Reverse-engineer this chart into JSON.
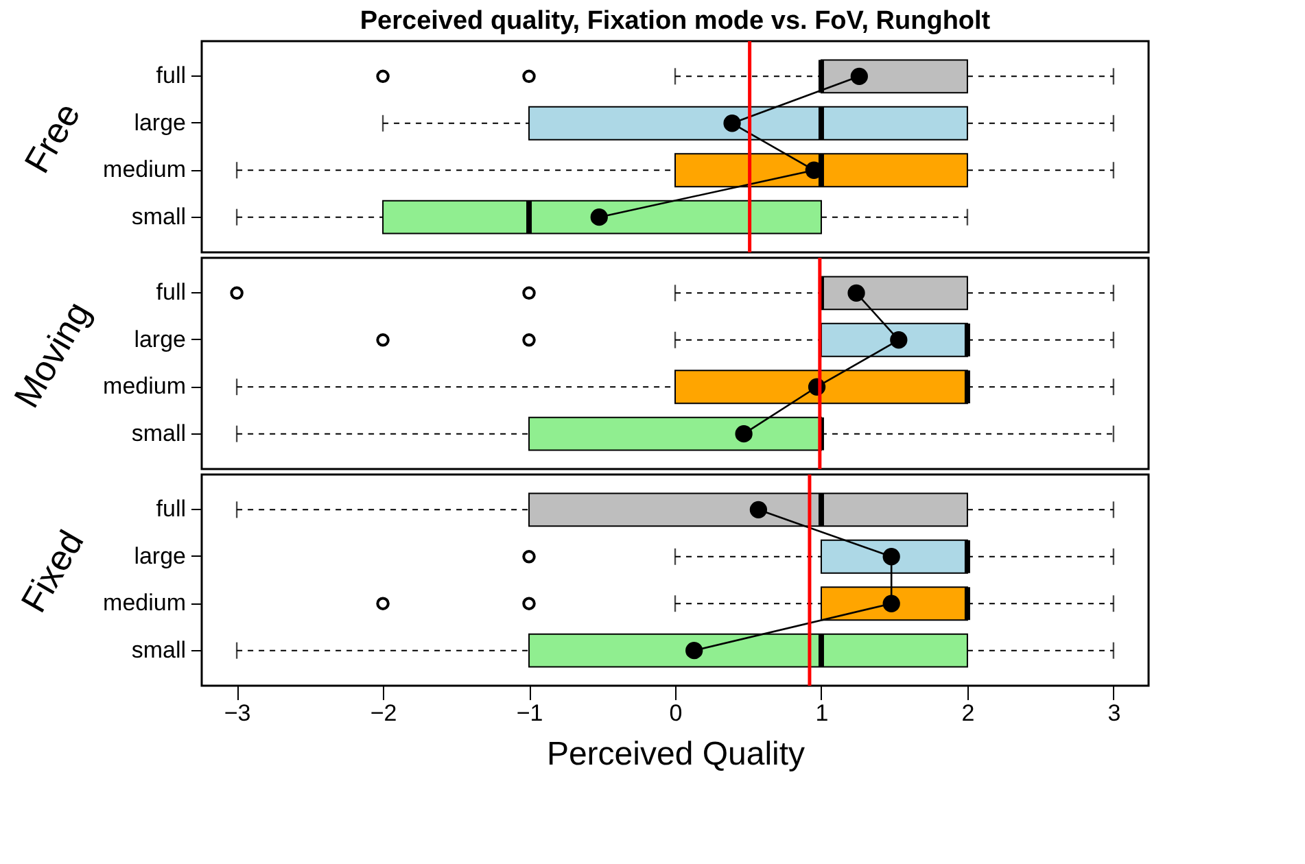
{
  "chart_data": [
    {
      "type": "box",
      "orientation": "horizontal",
      "title": "Perceived quality, Fixation mode vs. FoV,  Rungholt",
      "ylabel": "Free",
      "tick_labels": "y",
      "categories": [
        "full",
        "large",
        "medium",
        "small"
      ],
      "colors": [
        "#bebebe",
        "#add8e6",
        "#ffa500",
        "#90ee90"
      ],
      "boxes": [
        {
          "low": 0,
          "q1": 1,
          "median": 1,
          "q3": 2,
          "high": 3,
          "outliers": [
            -2,
            -1
          ]
        },
        {
          "low": -2,
          "q1": -1,
          "median": 1,
          "q3": 2,
          "high": 3
        },
        {
          "low": -3,
          "q1": 0,
          "median": 1,
          "q3": 2,
          "high": 3
        },
        {
          "low": -3,
          "q1": -2,
          "median": -1,
          "q3": 1,
          "high": 2
        }
      ],
      "series": [
        {
          "type": "line",
          "color": "#000000",
          "marker": "circle",
          "values": [
            1.26,
            0.39,
            0.95,
            -0.52
          ]
        }
      ],
      "ref_lines": [
        {
          "axis": "x",
          "value": 0.51,
          "color": "#ff0000"
        }
      ],
      "xlim": [
        -3.24,
        3.24
      ],
      "xticks": [
        -3,
        -2,
        -1,
        0,
        1,
        2,
        3
      ]
    },
    {
      "type": "box",
      "orientation": "horizontal",
      "ylabel": "Moving",
      "tick_labels": "y",
      "categories": [
        "full",
        "large",
        "medium",
        "small"
      ],
      "colors": [
        "#bebebe",
        "#add8e6",
        "#ffa500",
        "#90ee90"
      ],
      "boxes": [
        {
          "low": 0,
          "q1": 1,
          "median": 1,
          "q3": 2,
          "high": 3,
          "outliers": [
            -3,
            -1
          ]
        },
        {
          "low": 0,
          "q1": 1,
          "median": 2,
          "q3": 2,
          "high": 3,
          "outliers": [
            -2,
            -1
          ]
        },
        {
          "low": -3,
          "q1": 0,
          "median": 2,
          "q3": 2,
          "high": 3
        },
        {
          "low": -3,
          "q1": -1,
          "median": 1,
          "q3": 1,
          "high": 3
        }
      ],
      "series": [
        {
          "type": "line",
          "color": "#000000",
          "marker": "circle",
          "values": [
            1.24,
            1.53,
            0.97,
            0.47
          ]
        }
      ],
      "ref_lines": [
        {
          "axis": "x",
          "value": 0.99,
          "color": "#ff0000"
        }
      ],
      "xlim": [
        -3.24,
        3.24
      ],
      "xticks": [
        -3,
        -2,
        -1,
        0,
        1,
        2,
        3
      ]
    },
    {
      "type": "box",
      "orientation": "horizontal",
      "ylabel": "Fixed",
      "xlabel": "Perceived Quality",
      "categories": [
        "full",
        "large",
        "medium",
        "small"
      ],
      "colors": [
        "#bebebe",
        "#add8e6",
        "#ffa500",
        "#90ee90"
      ],
      "boxes": [
        {
          "low": -3,
          "q1": -1,
          "median": 1,
          "q3": 2,
          "high": 3
        },
        {
          "low": 0,
          "q1": 1,
          "median": 2,
          "q3": 2,
          "high": 3,
          "outliers": [
            -1
          ]
        },
        {
          "low": 0,
          "q1": 1,
          "median": 2,
          "q3": 2,
          "high": 3,
          "outliers": [
            -2,
            -1
          ]
        },
        {
          "low": -3,
          "q1": -1,
          "median": 1,
          "q3": 2,
          "high": 3
        }
      ],
      "series": [
        {
          "type": "line",
          "color": "#000000",
          "marker": "circle",
          "values": [
            0.57,
            1.48,
            1.48,
            0.13
          ]
        }
      ],
      "ref_lines": [
        {
          "axis": "x",
          "value": 0.92,
          "color": "#ff0000"
        }
      ],
      "xlim": [
        -3.24,
        3.24
      ],
      "xticks": [
        -3,
        -2,
        -1,
        0,
        1,
        2,
        3
      ]
    }
  ]
}
